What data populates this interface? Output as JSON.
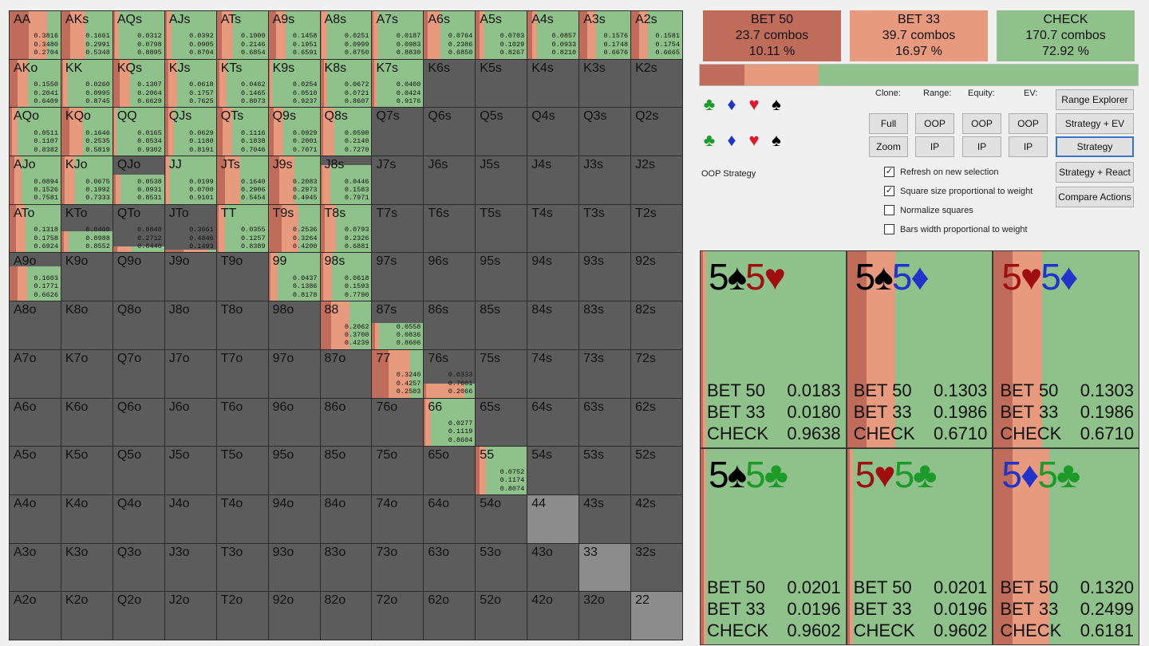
{
  "colors": {
    "bet50": "#c06c5a",
    "bet33": "#e89a7e",
    "check": "#8fc18a",
    "empty": "#5c5c5c",
    "pair_empty": "#8c8c8c"
  },
  "actions": [
    {
      "name": "BET 50",
      "combos": "23.7 combos",
      "pct": "10.11 %",
      "fraction": 0.1011
    },
    {
      "name": "BET 33",
      "combos": "39.7 combos",
      "pct": "16.97 %",
      "fraction": 0.1697
    },
    {
      "name": "CHECK",
      "combos": "170.7 combos",
      "pct": "72.92 %",
      "fraction": 0.7292
    }
  ],
  "suits": {
    "row1": [
      "♣",
      "♦",
      "♥",
      "♠"
    ],
    "row2": [
      "♣",
      "♦",
      "♥",
      "♠"
    ]
  },
  "oop_label": "OOP Strategy",
  "headers": {
    "clone": "Clone:",
    "range": "Range:",
    "equity": "Equity:",
    "ev": "EV:"
  },
  "buttons": {
    "full": "Full",
    "zoom": "Zoom",
    "range_oop": "OOP",
    "range_ip": "IP",
    "equity_oop": "OOP",
    "equity_ip": "IP",
    "ev_oop": "OOP",
    "ev_ip": "IP",
    "range_explorer": "Range Explorer",
    "strategy_ev": "Strategy + EV",
    "strategy": "Strategy",
    "strategy_react": "Strategy + React",
    "compare_actions": "Compare Actions"
  },
  "checkboxes": [
    {
      "label": "Refresh on new selection",
      "checked": true
    },
    {
      "label": "Square size proportional to weight",
      "checked": true
    },
    {
      "label": "Normalize squares",
      "checked": false
    },
    {
      "label": "Bars width proportional to weight",
      "checked": false
    }
  ],
  "grid": [
    [
      "AA",
      "AKs",
      "AQs",
      "AJs",
      "ATs",
      "A9s",
      "A8s",
      "A7s",
      "A6s",
      "A5s",
      "A4s",
      "A3s",
      "A2s"
    ],
    [
      "AKo",
      "KK",
      "KQs",
      "KJs",
      "KTs",
      "K9s",
      "K8s",
      "K7s",
      "K6s",
      "K5s",
      "K4s",
      "K3s",
      "K2s"
    ],
    [
      "AQo",
      "KQo",
      "QQ",
      "QJs",
      "QTs",
      "Q9s",
      "Q8s",
      "Q7s",
      "Q6s",
      "Q5s",
      "Q4s",
      "Q3s",
      "Q2s"
    ],
    [
      "AJo",
      "KJo",
      "QJo",
      "JJ",
      "JTs",
      "J9s",
      "J8s",
      "J7s",
      "J6s",
      "J5s",
      "J4s",
      "J3s",
      "J2s"
    ],
    [
      "ATo",
      "KTo",
      "QTo",
      "JTo",
      "TT",
      "T9s",
      "T8s",
      "T7s",
      "T6s",
      "T5s",
      "T4s",
      "T3s",
      "T2s"
    ],
    [
      "A9o",
      "K9o",
      "Q9o",
      "J9o",
      "T9o",
      "99",
      "98s",
      "97s",
      "96s",
      "95s",
      "94s",
      "93s",
      "92s"
    ],
    [
      "A8o",
      "K8o",
      "Q8o",
      "J8o",
      "T8o",
      "98o",
      "88",
      "87s",
      "86s",
      "85s",
      "84s",
      "83s",
      "82s"
    ],
    [
      "A7o",
      "K7o",
      "Q7o",
      "J7o",
      "T7o",
      "97o",
      "87o",
      "77",
      "76s",
      "75s",
      "74s",
      "73s",
      "72s"
    ],
    [
      "A6o",
      "K6o",
      "Q6o",
      "J6o",
      "T6o",
      "96o",
      "86o",
      "76o",
      "66",
      "65s",
      "64s",
      "63s",
      "62s"
    ],
    [
      "A5o",
      "K5o",
      "Q5o",
      "J5o",
      "T5o",
      "95o",
      "85o",
      "75o",
      "65o",
      "55",
      "54s",
      "53s",
      "52s"
    ],
    [
      "A4o",
      "K4o",
      "Q4o",
      "J4o",
      "T4o",
      "94o",
      "84o",
      "74o",
      "64o",
      "54o",
      "44",
      "43s",
      "42s"
    ],
    [
      "A3o",
      "K3o",
      "Q3o",
      "J3o",
      "T3o",
      "93o",
      "83o",
      "73o",
      "63o",
      "53o",
      "43o",
      "33",
      "32s"
    ],
    [
      "A2o",
      "K2o",
      "Q2o",
      "J2o",
      "T2o",
      "92o",
      "82o",
      "72o",
      "62o",
      "52o",
      "42o",
      "32o",
      "22"
    ]
  ],
  "light_cells": [
    "44",
    "33",
    "22"
  ],
  "hands": {
    "AA": {
      "weight": 1,
      "vals": [
        "0.3816",
        "0.3480",
        "0.2704"
      ]
    },
    "AKs": {
      "weight": 1,
      "vals": [
        "0.1661",
        "0.2991",
        "0.5348"
      ]
    },
    "AQs": {
      "weight": 1,
      "vals": [
        "0.0312",
        "0.0798",
        "0.8895"
      ]
    },
    "AJs": {
      "weight": 1,
      "vals": [
        "0.0392",
        "0.0905",
        "0.8704"
      ]
    },
    "ATs": {
      "weight": 1,
      "vals": [
        "0.1000",
        "0.2146",
        "0.6854"
      ]
    },
    "A9s": {
      "weight": 1,
      "vals": [
        "0.1458",
        "0.1951",
        "0.6591"
      ]
    },
    "A8s": {
      "weight": 1,
      "vals": [
        "0.0251",
        "0.0999",
        "0.8750"
      ]
    },
    "A7s": {
      "weight": 1,
      "vals": [
        "0.0187",
        "0.0983",
        "0.8830"
      ]
    },
    "A6s": {
      "weight": 1,
      "vals": [
        "0.0764",
        "0.2386",
        "0.6850"
      ]
    },
    "A5s": {
      "weight": 1,
      "vals": [
        "0.0703",
        "0.1029",
        "0.8267"
      ]
    },
    "A4s": {
      "weight": 1,
      "vals": [
        "0.0857",
        "0.0933",
        "0.8210"
      ]
    },
    "A3s": {
      "weight": 1,
      "vals": [
        "0.1576",
        "0.1748",
        "0.6676"
      ]
    },
    "A2s": {
      "weight": 1,
      "vals": [
        "0.1581",
        "0.1754",
        "0.6665"
      ]
    },
    "AKo": {
      "weight": 1,
      "vals": [
        "0.1550",
        "0.2041",
        "0.6409"
      ]
    },
    "KK": {
      "weight": 1,
      "vals": [
        "0.0260",
        "0.0995",
        "0.8745"
      ]
    },
    "KQs": {
      "weight": 1,
      "vals": [
        "0.1307",
        "0.2064",
        "0.6629"
      ]
    },
    "KJs": {
      "weight": 1,
      "vals": [
        "0.0618",
        "0.1757",
        "0.7625"
      ]
    },
    "KTs": {
      "weight": 1,
      "vals": [
        "0.0462",
        "0.1465",
        "0.8073"
      ]
    },
    "K9s": {
      "weight": 1,
      "vals": [
        "0.0254",
        "0.0510",
        "0.9237"
      ]
    },
    "K8s": {
      "weight": 1,
      "vals": [
        "0.0672",
        "0.0721",
        "0.8607"
      ]
    },
    "K7s": {
      "weight": 1,
      "vals": [
        "0.0400",
        "0.0424",
        "0.9176"
      ]
    },
    "AQo": {
      "weight": 1,
      "vals": [
        "0.0511",
        "0.1107",
        "0.8382"
      ]
    },
    "KQo": {
      "weight": 1,
      "vals": [
        "0.1646",
        "0.2535",
        "0.5819"
      ]
    },
    "QQ": {
      "weight": 1,
      "vals": [
        "0.0165",
        "0.0534",
        "0.9302"
      ]
    },
    "QJs": {
      "weight": 1,
      "vals": [
        "0.0629",
        "0.1180",
        "0.8191"
      ]
    },
    "QTs": {
      "weight": 1,
      "vals": [
        "0.1116",
        "0.1838",
        "0.7046"
      ]
    },
    "Q9s": {
      "weight": 1,
      "vals": [
        "0.0929",
        "0.2001",
        "0.7071"
      ]
    },
    "Q8s": {
      "weight": 1,
      "vals": [
        "0.0590",
        "0.2140",
        "0.7270"
      ]
    },
    "AJo": {
      "weight": 1,
      "vals": [
        "0.0894",
        "0.1526",
        "0.7581"
      ]
    },
    "KJo": {
      "weight": 1,
      "vals": [
        "0.0675",
        "0.1992",
        "0.7333"
      ]
    },
    "QJo": {
      "weight": 0.62,
      "vals": [
        "0.0538",
        "0.0931",
        "0.8531"
      ]
    },
    "JJ": {
      "weight": 1,
      "vals": [
        "0.0199",
        "0.0700",
        "0.9101"
      ]
    },
    "JTs": {
      "weight": 1,
      "vals": [
        "0.1640",
        "0.2906",
        "0.5454"
      ]
    },
    "J9s": {
      "weight": 1,
      "vals": [
        "0.2083",
        "0.2973",
        "0.4945"
      ]
    },
    "J8s": {
      "weight": 0.82,
      "vals": [
        "0.0446",
        "0.1583",
        "0.7971"
      ]
    },
    "ATo": {
      "weight": 1,
      "vals": [
        "0.1318",
        "0.1758",
        "0.6924"
      ]
    },
    "KTo": {
      "weight": 0.45,
      "vals": [
        "0.0460",
        "0.0988",
        "0.8552"
      ]
    },
    "QTo": {
      "weight": 0.12,
      "vals": [
        "0.0848",
        "0.2712",
        "0.6440"
      ]
    },
    "JTo": {
      "weight": 0.05,
      "vals": [
        "0.3661",
        "0.4846",
        "0.1493"
      ]
    },
    "TT": {
      "weight": 1,
      "vals": [
        "0.0355",
        "0.1257",
        "0.8389"
      ]
    },
    "T9s": {
      "weight": 1,
      "vals": [
        "0.2536",
        "0.3264",
        "0.4200"
      ]
    },
    "T8s": {
      "weight": 1,
      "vals": [
        "0.0793",
        "0.2326",
        "0.6881"
      ]
    },
    "A9o": {
      "weight": 0.72,
      "vals": [
        "0.1603",
        "0.1771",
        "0.6626"
      ]
    },
    "99": {
      "weight": 1,
      "vals": [
        "0.0437",
        "0.1386",
        "0.8178"
      ]
    },
    "98s": {
      "weight": 1,
      "vals": [
        "0.0618",
        "0.1593",
        "0.7790"
      ]
    },
    "88": {
      "weight": 1,
      "vals": [
        "0.2062",
        "0.3700",
        "0.4239"
      ]
    },
    "87s": {
      "weight": 0.55,
      "vals": [
        "0.0558",
        "0.0836",
        "0.8606"
      ]
    },
    "77": {
      "weight": 1,
      "vals": [
        "0.3240",
        "0.4257",
        "0.2503"
      ]
    },
    "76s": {
      "weight": 0.3,
      "vals": [
        "0.0333",
        "0.7601",
        "0.2066"
      ]
    },
    "66": {
      "weight": 1,
      "vals": [
        "0.0277",
        "0.1119",
        "0.8604"
      ]
    },
    "55": {
      "weight": 1,
      "vals": [
        "0.0752",
        "0.1174",
        "0.8074"
      ]
    }
  },
  "combos": [
    {
      "c1": {
        "rank": "5",
        "suit": "♠",
        "cls": "r-spade"
      },
      "c2": {
        "rank": "5",
        "suit": "♥",
        "cls": "r-heart"
      },
      "rows": [
        {
          "a": "BET 50",
          "v": "0.0183"
        },
        {
          "a": "BET 33",
          "v": "0.0180"
        },
        {
          "a": "CHECK",
          "v": "0.9638"
        }
      ]
    },
    {
      "c1": {
        "rank": "5",
        "suit": "♠",
        "cls": "r-spade"
      },
      "c2": {
        "rank": "5",
        "suit": "♦",
        "cls": "r-dia"
      },
      "rows": [
        {
          "a": "BET 50",
          "v": "0.1303"
        },
        {
          "a": "BET 33",
          "v": "0.1986"
        },
        {
          "a": "CHECK",
          "v": "0.6710"
        }
      ]
    },
    {
      "c1": {
        "rank": "5",
        "suit": "♥",
        "cls": "r-heart"
      },
      "c2": {
        "rank": "5",
        "suit": "♦",
        "cls": "r-dia"
      },
      "rows": [
        {
          "a": "BET 50",
          "v": "0.1303"
        },
        {
          "a": "BET 33",
          "v": "0.1986"
        },
        {
          "a": "CHECK",
          "v": "0.6710"
        }
      ]
    },
    {
      "c1": {
        "rank": "5",
        "suit": "♠",
        "cls": "r-spade"
      },
      "c2": {
        "rank": "5",
        "suit": "♣",
        "cls": "r-club"
      },
      "rows": [
        {
          "a": "BET 50",
          "v": "0.0201"
        },
        {
          "a": "BET 33",
          "v": "0.0196"
        },
        {
          "a": "CHECK",
          "v": "0.9602"
        }
      ]
    },
    {
      "c1": {
        "rank": "5",
        "suit": "♥",
        "cls": "r-heart"
      },
      "c2": {
        "rank": "5",
        "suit": "♣",
        "cls": "r-club"
      },
      "rows": [
        {
          "a": "BET 50",
          "v": "0.0201"
        },
        {
          "a": "BET 33",
          "v": "0.0196"
        },
        {
          "a": "CHECK",
          "v": "0.9602"
        }
      ]
    },
    {
      "c1": {
        "rank": "5",
        "suit": "♦",
        "cls": "r-dia"
      },
      "c2": {
        "rank": "5",
        "suit": "♣",
        "cls": "r-club"
      },
      "rows": [
        {
          "a": "BET 50",
          "v": "0.1320"
        },
        {
          "a": "BET 33",
          "v": "0.2499"
        },
        {
          "a": "CHECK",
          "v": "0.6181"
        }
      ]
    }
  ]
}
